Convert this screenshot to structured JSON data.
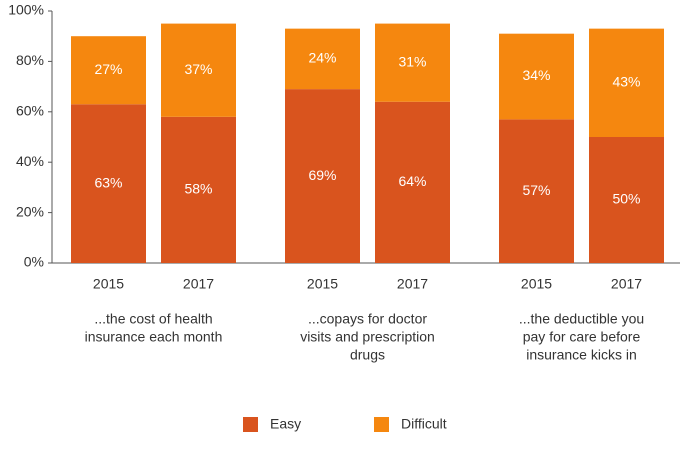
{
  "chart_data": {
    "type": "stacked_bar",
    "categories": [
      "2015",
      "2017",
      "2015",
      "2017",
      "2015",
      "2017"
    ],
    "groups": [
      [
        "...the cost of health",
        "insurance each month"
      ],
      [
        "...copays for doctor",
        "visits and prescription",
        "drugs"
      ],
      [
        "...the deductible you",
        "pay for care before",
        "insurance kicks in"
      ]
    ],
    "series": [
      {
        "name": "Easy",
        "color": "#d9541e",
        "values": [
          63,
          58,
          69,
          64,
          57,
          50
        ],
        "value_labels": [
          "63%",
          "58%",
          "69%",
          "64%",
          "57%",
          "50%"
        ]
      },
      {
        "name": "Difficult",
        "color": "#f5870f",
        "values": [
          27,
          37,
          24,
          31,
          34,
          43
        ],
        "value_labels": [
          "27%",
          "37%",
          "24%",
          "31%",
          "34%",
          "43%"
        ]
      }
    ],
    "ylim": [
      0,
      100
    ],
    "yticks": [
      {
        "value": 0,
        "label": "0%"
      },
      {
        "value": 20,
        "label": "20%"
      },
      {
        "value": 40,
        "label": "40%"
      },
      {
        "value": 60,
        "label": "60%"
      },
      {
        "value": 80,
        "label": "80%"
      },
      {
        "value": 100,
        "label": "100%"
      }
    ]
  }
}
